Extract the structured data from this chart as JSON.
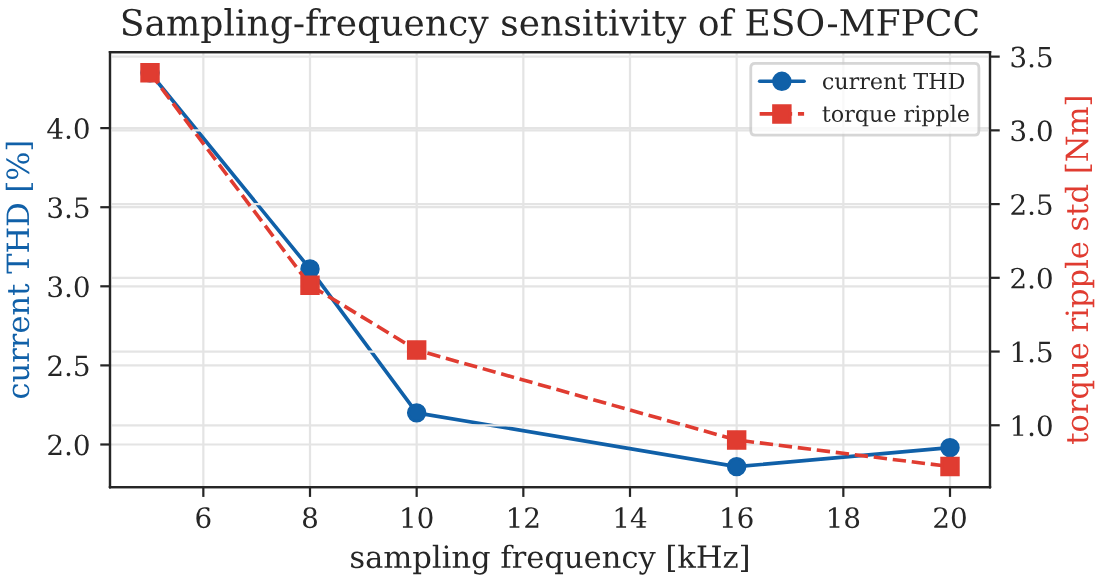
{
  "chart_data": {
    "type": "line",
    "title": "Sampling-frequency sensitivity of ESO-MFPCC",
    "xlabel": "sampling frequency [kHz]",
    "ylabel": "current THD [%]",
    "y2label": "torque ripple std [Nm]",
    "x": [
      5,
      8,
      10,
      16,
      20
    ],
    "series": [
      {
        "name": "current THD",
        "color": "#1060a8",
        "values": [
          4.35,
          3.11,
          2.2,
          1.86,
          1.98
        ],
        "marker": "circle",
        "line_style": "solid"
      },
      {
        "name": "torque ripple",
        "color": "#e03c31",
        "values": [
          3.39,
          1.95,
          1.51,
          0.9,
          0.72
        ],
        "axis": "y2",
        "marker": "square",
        "line_style": "dashed"
      }
    ],
    "xlim": [
      4.25,
      20.75
    ],
    "xticks": [
      6,
      8,
      10,
      12,
      14,
      16,
      18,
      20
    ],
    "ylim": [
      1.73,
      4.48
    ],
    "yticks": [
      {
        "value": 2,
        "label": "2.0"
      },
      2.5,
      {
        "value": 3,
        "label": "3.0"
      },
      3.5,
      {
        "value": 4,
        "label": "4.0"
      }
    ],
    "y2lim": [
      0.58,
      3.53
    ],
    "y2ticks": [
      {
        "value": 1,
        "label": "1.0"
      },
      1.5,
      {
        "value": 2,
        "label": "2.0"
      },
      2.5,
      {
        "value": 3,
        "label": "3.0"
      },
      3.5
    ],
    "grid": true,
    "legend": "top right"
  }
}
